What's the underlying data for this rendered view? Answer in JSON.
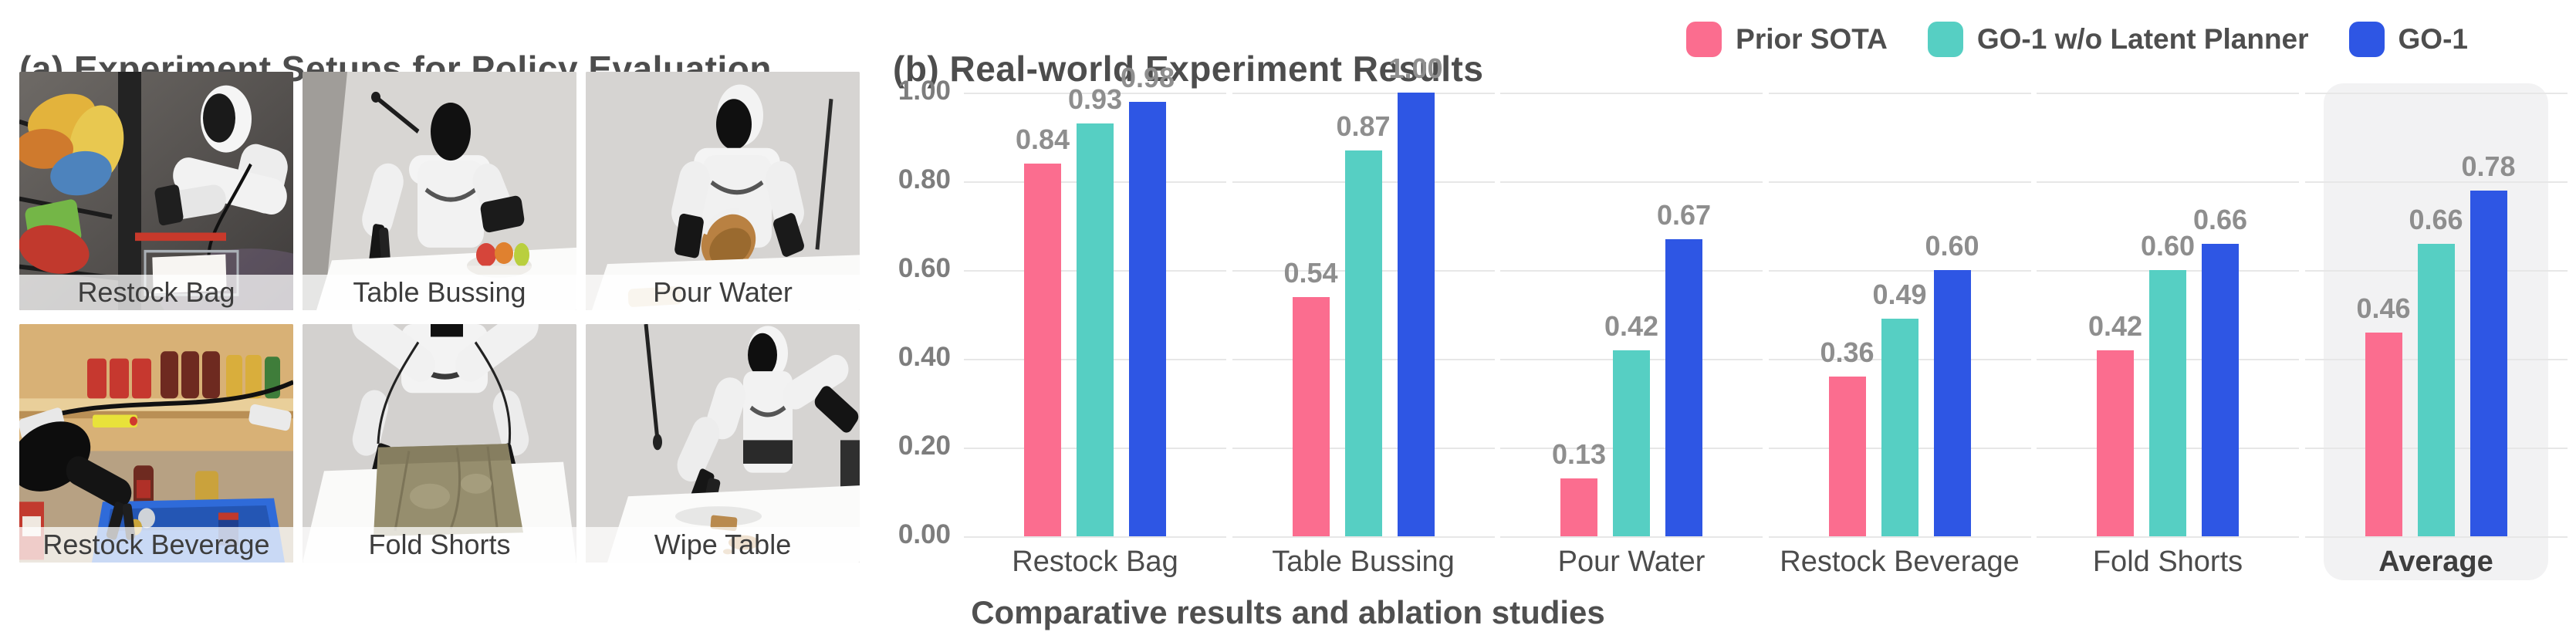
{
  "panel_a": {
    "title": "(a) Experiment Setups for Policy Evaluation",
    "setups": [
      {
        "label": "Restock Bag"
      },
      {
        "label": "Table Bussing"
      },
      {
        "label": "Pour Water"
      },
      {
        "label": "Restock Beverage"
      },
      {
        "label": "Fold Shorts"
      },
      {
        "label": "Wipe Table"
      }
    ]
  },
  "panel_b": {
    "title": "(b) Real-world Experiment Results",
    "caption": "Comparative results and ablation studies",
    "legend": [
      {
        "label": "Prior SOTA",
        "color": "#FB6D8F"
      },
      {
        "label": "GO-1 w/o Latent Planner",
        "color": "#56CFC3"
      },
      {
        "label": "GO-1",
        "color": "#2E56E4"
      }
    ]
  },
  "chart_data": {
    "type": "bar",
    "title": "(b) Real-world Experiment Results",
    "categories": [
      "Restock Bag",
      "Table Bussing",
      "Pour Water",
      "Restock Beverage",
      "Fold Shorts",
      "Average"
    ],
    "series": [
      {
        "name": "Prior SOTA",
        "color": "#FB6D8F",
        "values": [
          0.84,
          0.54,
          0.13,
          0.36,
          0.42,
          0.46
        ]
      },
      {
        "name": "GO-1 w/o Latent Planner",
        "color": "#56CFC3",
        "values": [
          0.93,
          0.87,
          0.42,
          0.49,
          0.6,
          0.66
        ]
      },
      {
        "name": "GO-1",
        "color": "#2E56E4",
        "values": [
          0.98,
          1.0,
          0.67,
          0.6,
          0.66,
          0.78
        ]
      }
    ],
    "value_labels": [
      [
        "0.84",
        "0.93",
        "0.98"
      ],
      [
        "0.54",
        "0.87",
        "1.00"
      ],
      [
        "0.13",
        "0.42",
        "0.67"
      ],
      [
        "0.36",
        "0.49",
        "0.60"
      ],
      [
        "0.42",
        "0.60",
        "0.66"
      ],
      [
        "0.46",
        "0.66",
        "0.78"
      ]
    ],
    "xlabel": "",
    "ylabel": "",
    "ylim": [
      0,
      1.0
    ],
    "yticks": [
      0.0,
      0.2,
      0.4,
      0.6,
      0.8,
      1.0
    ],
    "ytick_labels": [
      "0.00",
      "0.20",
      "0.40",
      "0.60",
      "0.80",
      "1.00"
    ],
    "grid": true,
    "legend_position": "top-right",
    "highlight_category": "Average",
    "caption": "Comparative results and ablation studies"
  }
}
